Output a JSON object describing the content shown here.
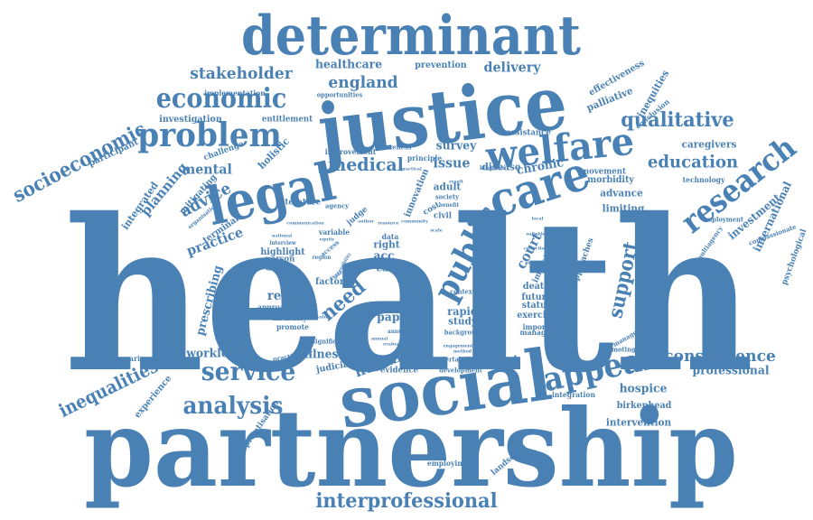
{
  "color": "#4a81b5",
  "background": "#ffffff",
  "words": [
    "health",
    "partnership",
    "justice",
    "social",
    "determinant",
    "legal",
    "welfare",
    "care",
    "research",
    "public",
    "problem",
    "appeal",
    "economic",
    "service",
    "analysis",
    "qualitative",
    "interprofessional",
    "socioeconomic",
    "inequalities",
    "support",
    "need",
    "medical",
    "education",
    "consequence",
    "stakeholder",
    "england",
    "healthcare",
    "delivery",
    "human",
    "review",
    "advice",
    "planning",
    "mental",
    "practice",
    "prescribing",
    "workload",
    "court",
    "issue",
    "chronic",
    "survey",
    "integrated",
    "holistic",
    "acc",
    "paper",
    "carer",
    "rapid",
    "study",
    "professional",
    "hospice",
    "patient",
    "illness",
    "return",
    "investment",
    "international",
    "caregivers",
    "disease",
    "advance",
    "limiting",
    "death",
    "future",
    "exercise",
    "managed",
    "status",
    "important",
    "mitigating",
    "terminal",
    "palliative",
    "inequities",
    "effectiveness",
    "prevention",
    "assistance",
    "conclusion",
    "investigation",
    "participant",
    "implementation",
    "entitlement",
    "opportunities",
    "challenge",
    "improvement",
    "awareness",
    "principle",
    "agency",
    "literature",
    "factor",
    "person",
    "article",
    "disability",
    "promote",
    "approach",
    "variable",
    "right",
    "data",
    "context",
    "background",
    "judicial",
    "evidence",
    "development",
    "employing",
    "landscape",
    "privatisation",
    "experience",
    "comparison",
    "intervention",
    "birkenhead",
    "integration",
    "promoting",
    "management",
    "psychological",
    "compassionate",
    "multiagency",
    "employment",
    "technology",
    "movement",
    "morbidity",
    "approaches",
    "impact",
    "responsible",
    "innovation",
    "judge",
    "adult",
    "civil",
    "society",
    "benefit",
    "kingdom",
    "undertaken",
    "practitioner",
    "significant",
    "organisation",
    "interview",
    "highlight",
    "national",
    "annual",
    "access",
    "accessibility",
    "cost",
    "life",
    "practical",
    "suitable",
    "sector",
    "annual",
    "region",
    "system",
    "engagement",
    "equity",
    "resource",
    "local",
    "status",
    "method",
    "result",
    "value",
    "evaluation",
    "context",
    "collection",
    "communication",
    "community",
    "author",
    "scale"
  ]
}
